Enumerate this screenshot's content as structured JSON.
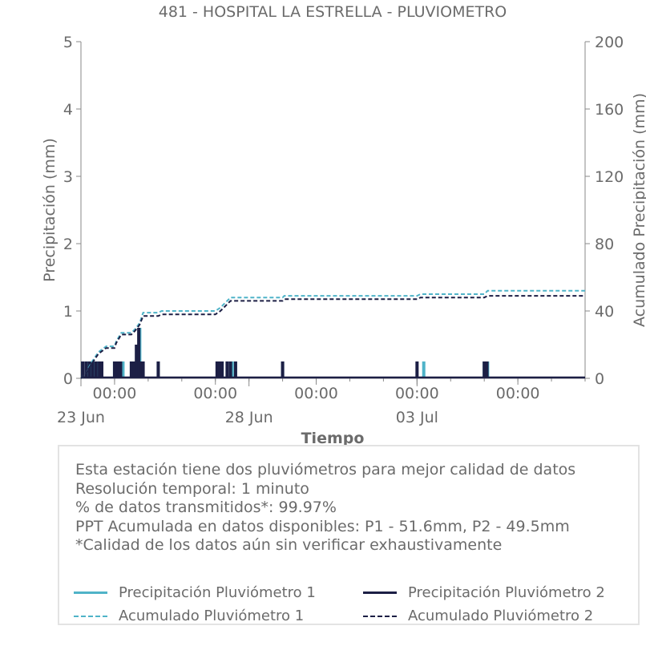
{
  "chart_data": {
    "type": "bar+line",
    "title": "481 - HOSPITAL LA ESTRELLA - PLUVIOMETRO",
    "xlabel": "Tiempo",
    "ylabel_left": "Precipitación (mm)",
    "ylabel_right": "Acumulado Precipitación (mm)",
    "ylim_left": [
      0,
      5
    ],
    "ylim_right": [
      0,
      200
    ],
    "yticks_left": [
      "0",
      "1",
      "2",
      "3",
      "4",
      "5"
    ],
    "yticks_right": [
      "0",
      "40",
      "80",
      "120",
      "160",
      "200"
    ],
    "xlim_days": [
      0,
      15
    ],
    "xticks_major": [
      {
        "day": 1,
        "label": "00:00"
      },
      {
        "day": 4,
        "label": "00:00"
      },
      {
        "day": 7,
        "label": "00:00"
      },
      {
        "day": 10,
        "label": "00:00"
      },
      {
        "day": 13,
        "label": "00:00"
      }
    ],
    "xticks_dates": [
      {
        "day": 0,
        "label": "23 Jun"
      },
      {
        "day": 5,
        "label": "28 Jun"
      },
      {
        "day": 10,
        "label": "03 Jul"
      }
    ],
    "series": [
      {
        "name": "Precipitación Pluviómetro 1",
        "kind": "bar",
        "color": "#4fb3c8",
        "points": [
          [
            0.05,
            0.25
          ],
          [
            0.2,
            0.25
          ],
          [
            0.3,
            0.25
          ],
          [
            0.4,
            0.25
          ],
          [
            0.5,
            0.25
          ],
          [
            0.6,
            0.25
          ],
          [
            1.0,
            0.25
          ],
          [
            1.1,
            0.25
          ],
          [
            1.25,
            0.25
          ],
          [
            1.5,
            0.25
          ],
          [
            1.6,
            0.25
          ],
          [
            1.7,
            0.5
          ],
          [
            1.75,
            0.75
          ],
          [
            1.8,
            0.25
          ],
          [
            2.3,
            0.25
          ],
          [
            4.1,
            0.25
          ],
          [
            4.2,
            0.25
          ],
          [
            4.35,
            0.25
          ],
          [
            4.5,
            0.25
          ],
          [
            4.6,
            0.25
          ],
          [
            6.0,
            0.25
          ],
          [
            10.2,
            0.25
          ],
          [
            12.0,
            0.25
          ],
          [
            12.1,
            0.25
          ]
        ]
      },
      {
        "name": "Precipitación Pluviómetro 2",
        "kind": "bar",
        "color": "#1c1f45",
        "points": [
          [
            0.05,
            0.25
          ],
          [
            0.15,
            0.25
          ],
          [
            0.25,
            0.25
          ],
          [
            0.35,
            0.25
          ],
          [
            0.45,
            0.25
          ],
          [
            0.55,
            0.25
          ],
          [
            0.62,
            0.25
          ],
          [
            1.0,
            0.25
          ],
          [
            1.05,
            0.25
          ],
          [
            1.12,
            0.25
          ],
          [
            1.18,
            0.25
          ],
          [
            1.5,
            0.25
          ],
          [
            1.58,
            0.25
          ],
          [
            1.65,
            0.5
          ],
          [
            1.72,
            0.75
          ],
          [
            1.78,
            0.25
          ],
          [
            1.85,
            0.25
          ],
          [
            2.3,
            0.25
          ],
          [
            4.05,
            0.25
          ],
          [
            4.12,
            0.25
          ],
          [
            4.2,
            0.25
          ],
          [
            4.35,
            0.25
          ],
          [
            4.45,
            0.25
          ],
          [
            4.6,
            0.25
          ],
          [
            6.0,
            0.25
          ],
          [
            10.0,
            0.25
          ],
          [
            12.0,
            0.25
          ],
          [
            12.08,
            0.25
          ]
        ]
      },
      {
        "name": "Acumulado Pluviómetro 1",
        "kind": "line",
        "dash": true,
        "color": "#4fb3c8",
        "points": [
          [
            0,
            0
          ],
          [
            0.15,
            3
          ],
          [
            0.3,
            9
          ],
          [
            0.5,
            15
          ],
          [
            0.55,
            16
          ],
          [
            0.75,
            19
          ],
          [
            1.0,
            19
          ],
          [
            1.05,
            22
          ],
          [
            1.2,
            27
          ],
          [
            1.5,
            27
          ],
          [
            1.6,
            29
          ],
          [
            1.68,
            31
          ],
          [
            1.75,
            33
          ],
          [
            1.85,
            39
          ],
          [
            2.3,
            39
          ],
          [
            2.4,
            40
          ],
          [
            4.0,
            40
          ],
          [
            4.15,
            42
          ],
          [
            4.3,
            45
          ],
          [
            4.45,
            48
          ],
          [
            6.0,
            48
          ],
          [
            6.05,
            49
          ],
          [
            10.0,
            49
          ],
          [
            10.1,
            50
          ],
          [
            12.0,
            50
          ],
          [
            12.1,
            52
          ],
          [
            15,
            52
          ]
        ]
      },
      {
        "name": "Acumulado Pluviómetro 2",
        "kind": "line",
        "dash": true,
        "color": "#1c1f45",
        "points": [
          [
            0,
            0
          ],
          [
            0.15,
            3
          ],
          [
            0.3,
            8
          ],
          [
            0.5,
            14
          ],
          [
            0.55,
            15
          ],
          [
            0.75,
            18
          ],
          [
            1.0,
            18
          ],
          [
            1.05,
            21
          ],
          [
            1.2,
            26
          ],
          [
            1.5,
            26
          ],
          [
            1.6,
            28
          ],
          [
            1.68,
            30
          ],
          [
            1.75,
            32
          ],
          [
            1.85,
            37
          ],
          [
            2.3,
            37
          ],
          [
            2.4,
            38
          ],
          [
            4.0,
            38
          ],
          [
            4.15,
            40
          ],
          [
            4.3,
            43
          ],
          [
            4.45,
            46
          ],
          [
            6.0,
            46
          ],
          [
            6.05,
            47
          ],
          [
            10.0,
            47
          ],
          [
            10.1,
            48
          ],
          [
            12.0,
            48
          ],
          [
            12.1,
            49
          ],
          [
            15,
            49
          ]
        ]
      }
    ],
    "legend_position": "bottom"
  },
  "info": {
    "lines": [
      "Esta estación tiene dos pluviómetros para mejor calidad de datos",
      "Resolución temporal: 1 minuto",
      "% de datos transmitidos*: 99.97%",
      "PPT Acumulada en datos disponibles: P1 - 51.6mm, P2 - 49.5mm",
      "*Calidad de los datos aún sin verificar exhaustivamente"
    ]
  },
  "legend": [
    {
      "label": "Precipitación Pluviómetro 1",
      "color": "#4fb3c8",
      "style": "solid"
    },
    {
      "label": "Precipitación Pluviómetro 2",
      "color": "#1c1f45",
      "style": "solid"
    },
    {
      "label": "Acumulado Pluviómetro 1",
      "color": "#4fb3c8",
      "style": "dashed"
    },
    {
      "label": "Acumulado Pluviómetro 2",
      "color": "#1c1f45",
      "style": "dashed"
    }
  ]
}
